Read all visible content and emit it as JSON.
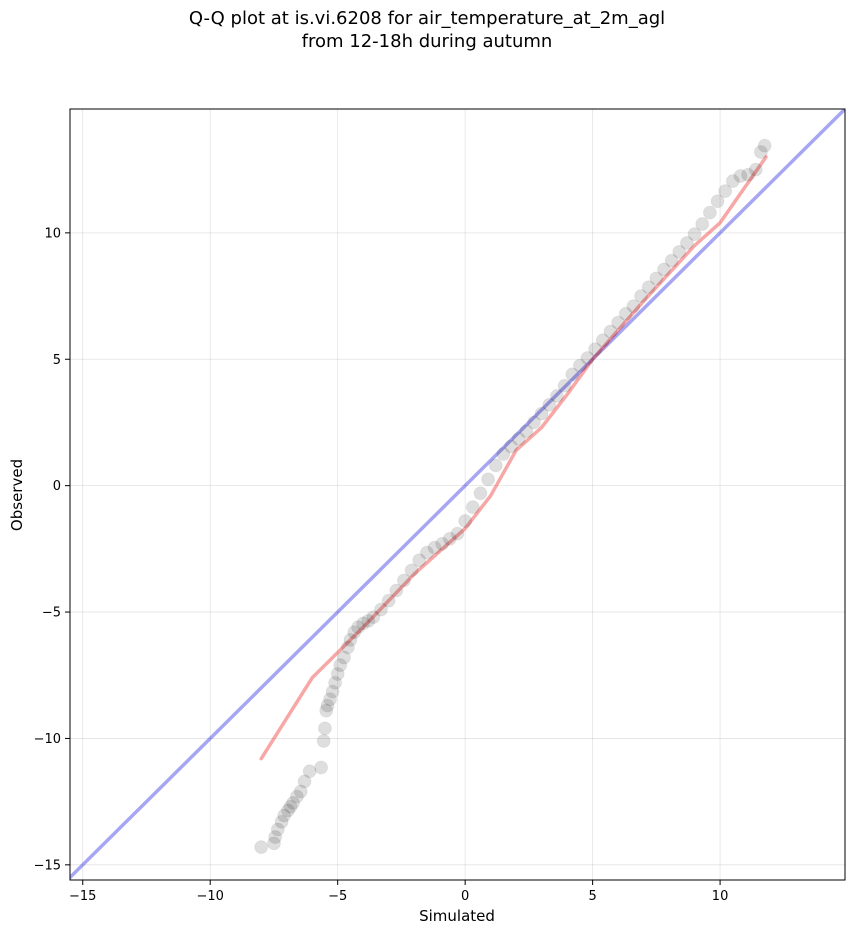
{
  "chart_data": {
    "type": "scatter",
    "title": "Q-Q plot at is.vi.6208 for air_temperature_at_2m_agl",
    "subtitle": "from 12-18h during autumn",
    "xlabel": "Simulated",
    "ylabel": "Observed",
    "xlim": [
      -15.5,
      14.9
    ],
    "ylim": [
      -15.6,
      14.9
    ],
    "xticks": [
      -15,
      -10,
      -5,
      0,
      5,
      10
    ],
    "yticks": [
      -15,
      -10,
      -5,
      0,
      5,
      10
    ],
    "xtick_labels": [
      "−15",
      "−10",
      "−5",
      "0",
      "5",
      "10"
    ],
    "ytick_labels": [
      "−15",
      "−10",
      "−5",
      "0",
      "5",
      "10"
    ],
    "grid": true,
    "points_color": "#000000",
    "identity_line": {
      "from": [
        -16,
        -16
      ],
      "to": [
        15,
        15
      ],
      "color": "#0000dd"
    },
    "fit_line": {
      "color": "#ee2222",
      "points": [
        [
          -8.0,
          -10.8
        ],
        [
          -6.0,
          -7.6
        ],
        [
          -4.0,
          -5.6
        ],
        [
          -2.0,
          -3.5
        ],
        [
          0.0,
          -1.7
        ],
        [
          1.0,
          -0.4
        ],
        [
          2.0,
          1.4
        ],
        [
          3.0,
          2.3
        ],
        [
          4.0,
          3.6
        ],
        [
          5.0,
          5.0
        ],
        [
          7.0,
          7.3
        ],
        [
          9.0,
          9.5
        ],
        [
          10.0,
          10.4
        ],
        [
          11.8,
          13.0
        ]
      ]
    },
    "points": {
      "x": [
        -8.0,
        -7.5,
        -7.45,
        -7.35,
        -7.2,
        -7.1,
        -6.95,
        -6.85,
        -6.75,
        -6.6,
        -6.45,
        -6.3,
        -6.1,
        -5.65,
        -5.55,
        -5.5,
        -5.45,
        -5.4,
        -5.3,
        -5.2,
        -5.1,
        -5.0,
        -4.9,
        -4.75,
        -4.6,
        -4.5,
        -4.35,
        -4.2,
        -4.0,
        -3.8,
        -3.6,
        -3.3,
        -3.0,
        -2.7,
        -2.4,
        -2.1,
        -1.8,
        -1.5,
        -1.2,
        -0.9,
        -0.6,
        -0.3,
        0.0,
        0.3,
        0.6,
        0.9,
        1.2,
        1.5,
        1.8,
        2.1,
        2.4,
        2.7,
        3.0,
        3.3,
        3.6,
        3.9,
        4.2,
        4.5,
        4.8,
        5.1,
        5.4,
        5.7,
        6.0,
        6.3,
        6.6,
        6.9,
        7.2,
        7.5,
        7.8,
        8.1,
        8.4,
        8.7,
        9.0,
        9.3,
        9.6,
        9.9,
        10.2,
        10.5,
        10.8,
        11.1,
        11.4,
        11.6,
        11.75
      ],
      "y": [
        -14.3,
        -14.15,
        -13.9,
        -13.6,
        -13.3,
        -13.05,
        -12.85,
        -12.7,
        -12.55,
        -12.3,
        -12.1,
        -11.7,
        -11.3,
        -11.15,
        -10.1,
        -9.6,
        -8.9,
        -8.7,
        -8.45,
        -8.15,
        -7.8,
        -7.45,
        -7.1,
        -6.8,
        -6.4,
        -6.1,
        -5.8,
        -5.6,
        -5.45,
        -5.35,
        -5.2,
        -4.9,
        -4.55,
        -4.15,
        -3.75,
        -3.35,
        -2.95,
        -2.65,
        -2.45,
        -2.3,
        -2.1,
        -1.9,
        -1.4,
        -0.85,
        -0.3,
        0.25,
        0.8,
        1.25,
        1.55,
        1.85,
        2.15,
        2.5,
        2.85,
        3.2,
        3.55,
        3.95,
        4.4,
        4.75,
        5.05,
        5.4,
        5.75,
        6.1,
        6.45,
        6.8,
        7.1,
        7.5,
        7.85,
        8.2,
        8.55,
        8.9,
        9.25,
        9.6,
        9.95,
        10.35,
        10.8,
        11.25,
        11.65,
        12.05,
        12.25,
        12.3,
        12.5,
        13.2,
        13.45
      ]
    }
  }
}
